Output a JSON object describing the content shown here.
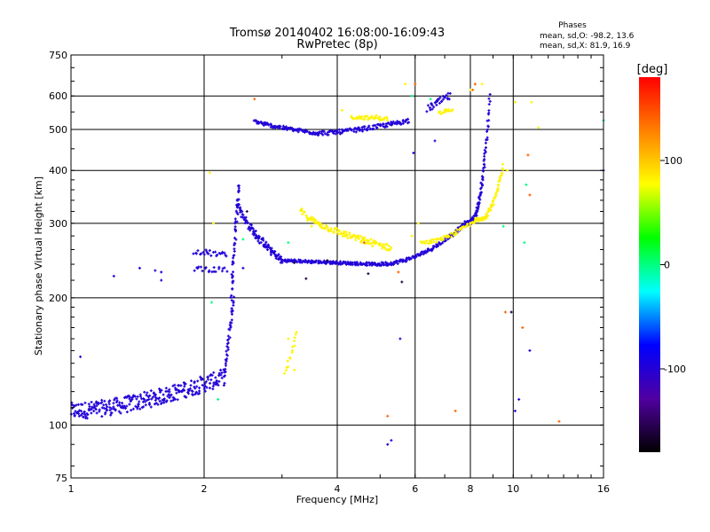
{
  "chart_data": {
    "type": "scatter",
    "title": "Tromsø 20140402 16:08:00-16:09:43",
    "subtitle": "RwPretec (8p)",
    "xlabel": "Frequency [MHz]",
    "ylabel": "Stationary phase Virtual Height [km]",
    "x_scale": "log",
    "y_scale": "log",
    "xlim": [
      1,
      16
    ],
    "ylim": [
      75,
      750
    ],
    "grid": true,
    "x_ticks": [
      1,
      2,
      4,
      6,
      8,
      10,
      16
    ],
    "y_ticks": [
      75,
      100,
      200,
      300,
      400,
      500,
      600,
      750
    ],
    "x_tick_labels": [
      "1",
      "2",
      "4",
      "6",
      "8",
      "10",
      "16"
    ],
    "y_tick_labels": [
      "75",
      "100",
      "200",
      "300",
      "400",
      "500",
      "600",
      "750"
    ],
    "info": {
      "heading": "Phases",
      "o_line": "mean, sd,O: -98.2, 13.6",
      "x_line": "mean, sd,X:  81.9, 16.9"
    },
    "colorbar": {
      "label": "[deg]",
      "range": [
        -180,
        180
      ],
      "ticks": [
        100,
        0,
        -100
      ],
      "tick_labels": [
        "100",
        "0",
        "-100"
      ],
      "stops": [
        "#000000",
        "#5000a0",
        "#0000ff",
        "#00ffff",
        "#00ff00",
        "#ffff00",
        "#ff8000",
        "#ff0000"
      ]
    },
    "series": [
      {
        "phase": -98,
        "shape": "curve",
        "x0": 1.0,
        "x1": 2.22,
        "y0": 108,
        "y1": 130,
        "p": 1.6,
        "n": 300,
        "jit": 0.045
      },
      {
        "phase": -98,
        "shape": "curve",
        "x0": 2.22,
        "x1": 2.33,
        "y0": 130,
        "y1": 200,
        "p": 1.0,
        "n": 40,
        "jit": 0.02
      },
      {
        "phase": -98,
        "shape": "curve",
        "x0": 2.3,
        "x1": 2.4,
        "y0": 200,
        "y1": 375,
        "p": 1.0,
        "n": 50,
        "jit": 0.025
      },
      {
        "phase": -98,
        "shape": "curve",
        "x0": 2.38,
        "x1": 3.0,
        "y0": 345,
        "y1": 245,
        "p": 0.6,
        "n": 110,
        "jit": 0.02
      },
      {
        "phase": -98,
        "shape": "curve",
        "x0": 3.0,
        "x1": 4.9,
        "y0": 245,
        "y1": 240,
        "p": 1.0,
        "n": 160,
        "jit": 0.008
      },
      {
        "phase": -98,
        "shape": "curve",
        "x0": 4.9,
        "x1": 7.8,
        "y0": 240,
        "y1": 300,
        "p": 2.0,
        "n": 140,
        "jit": 0.01
      },
      {
        "phase": -98,
        "shape": "curve",
        "x0": 7.8,
        "x1": 8.85,
        "y0": 300,
        "y1": 600,
        "p": 3.0,
        "n": 110,
        "jit": 0.012
      },
      {
        "phase": -98,
        "shape": "curve",
        "x0": 2.6,
        "x1": 3.6,
        "y0": 525,
        "y1": 490,
        "p": 0.7,
        "n": 100,
        "jit": 0.01
      },
      {
        "phase": -98,
        "shape": "curve",
        "x0": 3.6,
        "x1": 5.8,
        "y0": 490,
        "y1": 525,
        "p": 1.6,
        "n": 120,
        "jit": 0.012
      },
      {
        "phase": -98,
        "shape": "curve",
        "x0": 1.9,
        "x1": 2.25,
        "y0": 258,
        "y1": 252,
        "p": 1.0,
        "n": 25,
        "jit": 0.015
      },
      {
        "phase": -98,
        "shape": "curve",
        "x0": 1.9,
        "x1": 2.25,
        "y0": 235,
        "y1": 232,
        "p": 1.0,
        "n": 20,
        "jit": 0.015
      },
      {
        "phase": -98,
        "shape": "curve",
        "x0": 6.4,
        "x1": 7.2,
        "y0": 560,
        "y1": 600,
        "p": 1.0,
        "n": 30,
        "jit": 0.02
      },
      {
        "phase": 82,
        "shape": "curve",
        "x0": 3.3,
        "x1": 5.3,
        "y0": 325,
        "y1": 262,
        "p": 0.6,
        "n": 130,
        "jit": 0.018
      },
      {
        "phase": 82,
        "shape": "curve",
        "x0": 6.2,
        "x1": 8.2,
        "y0": 270,
        "y1": 305,
        "p": 1.8,
        "n": 60,
        "jit": 0.01
      },
      {
        "phase": 82,
        "shape": "curve",
        "x0": 8.2,
        "x1": 9.5,
        "y0": 305,
        "y1": 410,
        "p": 2.5,
        "n": 70,
        "jit": 0.012
      },
      {
        "phase": 82,
        "shape": "curve",
        "x0": 4.3,
        "x1": 5.2,
        "y0": 535,
        "y1": 530,
        "p": 1.0,
        "n": 40,
        "jit": 0.01
      },
      {
        "phase": 82,
        "shape": "curve",
        "x0": 3.05,
        "x1": 3.25,
        "y0": 132,
        "y1": 165,
        "p": 1.0,
        "n": 15,
        "jit": 0.01
      },
      {
        "phase": 82,
        "shape": "curve",
        "x0": 6.8,
        "x1": 7.3,
        "y0": 545,
        "y1": 560,
        "p": 1.0,
        "n": 15,
        "jit": 0.01
      },
      {
        "phase": 82,
        "shape": "points",
        "x": [
          2.06,
          2.1,
          3.1,
          3.2,
          3.5,
          4.1,
          4.9,
          5.7,
          5.9,
          6.1,
          8.0,
          8.5,
          9.7,
          10.1,
          11.4,
          11.0
        ],
        "y": [
          395,
          300,
          160,
          135,
          295,
          555,
          540,
          640,
          280,
          300,
          620,
          640,
          400,
          580,
          505,
          580
        ]
      },
      {
        "phase": 140,
        "shape": "points",
        "x": [
          5.5,
          5.2,
          6.0,
          8.1,
          8.2,
          9.6,
          10.8,
          10.9,
          10.5,
          12.7,
          7.4,
          2.6,
          4.6
        ],
        "y": [
          230,
          105,
          640,
          620,
          640,
          185,
          435,
          350,
          170,
          102,
          108,
          590,
          270
        ]
      },
      {
        "phase": 0,
        "shape": "points",
        "x": [
          2.08,
          2.15,
          2.45,
          3.1,
          5.9,
          6.5,
          10.7,
          10.6,
          9.5,
          16.0
        ],
        "y": [
          195,
          115,
          275,
          270,
          600,
          590,
          370,
          270,
          295,
          525
        ]
      },
      {
        "phase": -98,
        "shape": "points",
        "x": [
          1.05,
          1.25,
          1.43,
          1.55,
          1.6,
          1.6,
          2.45,
          5.95,
          5.3,
          5.55,
          6.65,
          10.3,
          10.9,
          10.1,
          16.0,
          5.2,
          6.0
        ],
        "y": [
          145,
          225,
          235,
          232,
          220,
          230,
          235,
          440,
          92,
          160,
          470,
          115,
          150,
          108,
          400,
          90,
          250
        ]
      },
      {
        "phase": -160,
        "shape": "points",
        "x": [
          3.4,
          3.2,
          4.7,
          5.6,
          2.5,
          3.8,
          9.9
        ],
        "y": [
          222,
          242,
          228,
          218,
          320,
          245,
          185
        ]
      }
    ]
  }
}
